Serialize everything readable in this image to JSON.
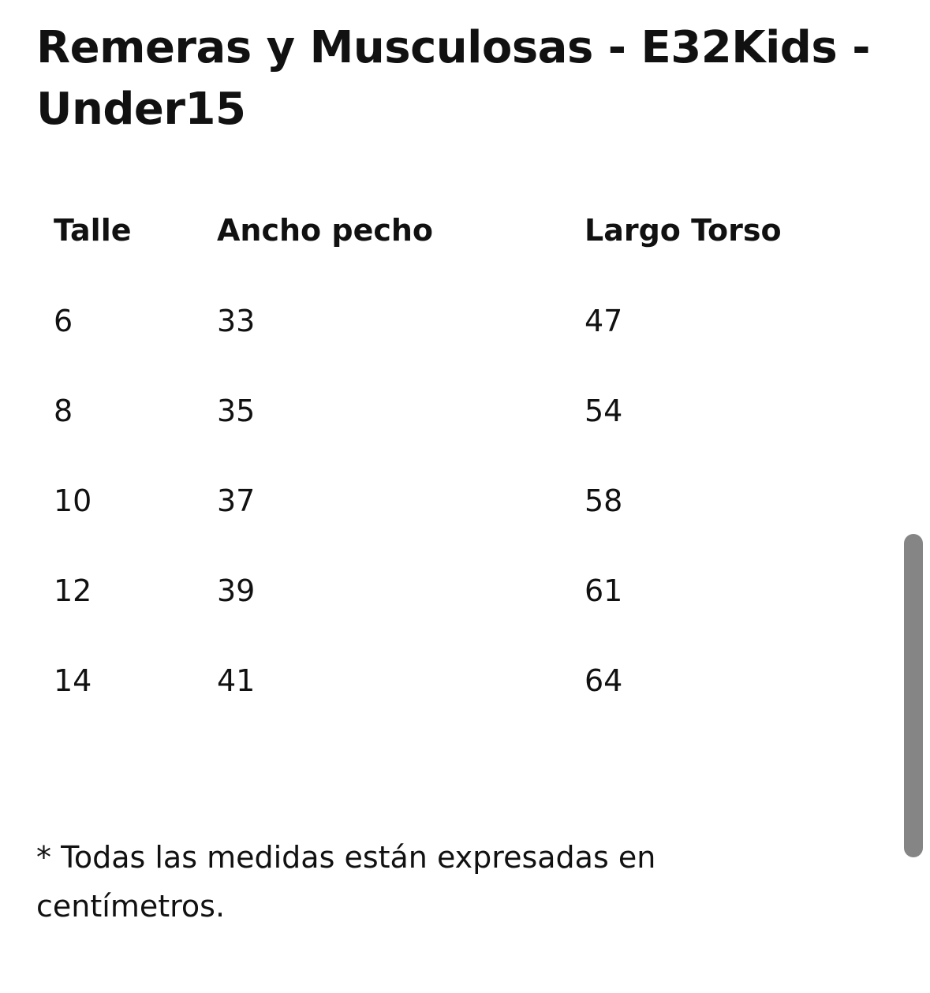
{
  "page": {
    "title": "Remeras y Musculosas - E32Kids - Under15",
    "footnote": "* Todas las medidas están expresadas en centímetros."
  },
  "table": {
    "headers": [
      "Talle",
      "Ancho pecho",
      "Largo Torso"
    ],
    "rows": [
      [
        "6",
        "33",
        "47"
      ],
      [
        "8",
        "35",
        "54"
      ],
      [
        "10",
        "37",
        "58"
      ],
      [
        "12",
        "39",
        "61"
      ],
      [
        "14",
        "41",
        "64"
      ]
    ]
  },
  "colors": {
    "text": "#111111",
    "background": "#ffffff",
    "scrollbar": "#858585"
  }
}
